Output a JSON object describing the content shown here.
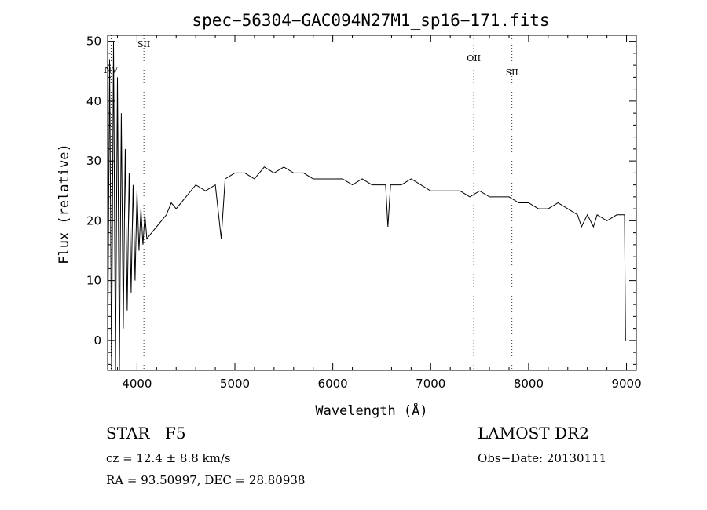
{
  "chart_data": {
    "type": "line",
    "title": "spec−56304−GAC094N27M1_sp16−171.fits",
    "xlabel": "Wavelength (Å)",
    "ylabel": "Flux (relative)",
    "xlim": [
      3700,
      9100
    ],
    "ylim": [
      -5,
      51
    ],
    "xticks": [
      4000,
      5000,
      6000,
      7000,
      8000,
      9000
    ],
    "yticks": [
      0,
      10,
      20,
      30,
      40,
      50
    ],
    "grid": false,
    "lines": [
      {
        "label": "NV",
        "x": 3735
      },
      {
        "label": "SII",
        "x": 4070
      },
      {
        "label": "OII",
        "x": 7440
      },
      {
        "label": "SII",
        "x": 7830
      }
    ],
    "series": [
      {
        "x": [
          3700,
          3720,
          3740,
          3760,
          3780,
          3800,
          3820,
          3840,
          3860,
          3880,
          3900,
          3920,
          3940,
          3960,
          3980,
          4000,
          4020,
          4040,
          4060,
          4080,
          4100,
          4150,
          4200,
          4250,
          4300,
          4350,
          4400,
          4450,
          4500,
          4600,
          4700,
          4800,
          4860,
          4900,
          5000,
          5100,
          5200,
          5300,
          5400,
          5500,
          5600,
          5700,
          5800,
          5890,
          6000,
          6100,
          6200,
          6300,
          6400,
          6500,
          6540,
          6563,
          6590,
          6700,
          6800,
          6900,
          7000,
          7100,
          7200,
          7300,
          7400,
          7500,
          7600,
          7700,
          7800,
          7900,
          8000,
          8100,
          8200,
          8300,
          8400,
          8500,
          8540,
          8600,
          8662,
          8700,
          8800,
          8900,
          8980,
          8990
        ],
        "y": [
          -5,
          47,
          -5,
          50,
          -5,
          44,
          -5,
          38,
          2,
          32,
          5,
          28,
          8,
          26,
          10,
          25,
          15,
          22,
          16,
          21,
          17,
          18,
          19,
          20,
          21,
          23,
          22,
          23,
          24,
          26,
          25,
          26,
          17,
          27,
          28,
          28,
          27,
          29,
          28,
          29,
          28,
          28,
          27,
          27,
          27,
          27,
          26,
          27,
          26,
          26,
          26,
          19,
          26,
          26,
          27,
          26,
          25,
          25,
          25,
          25,
          24,
          25,
          24,
          24,
          24,
          23,
          23,
          22,
          22,
          23,
          22,
          21,
          19,
          21,
          19,
          21,
          20,
          21,
          21,
          0
        ]
      }
    ]
  },
  "info": {
    "type_label": "STAR",
    "subclass": "F5",
    "survey": "LAMOST DR2",
    "cz": "cz = 12.4 ± 8.8 km/s",
    "obs_date": "Obs−Date: 20130111",
    "coords": "RA =  93.50997, DEC =  28.80938"
  }
}
